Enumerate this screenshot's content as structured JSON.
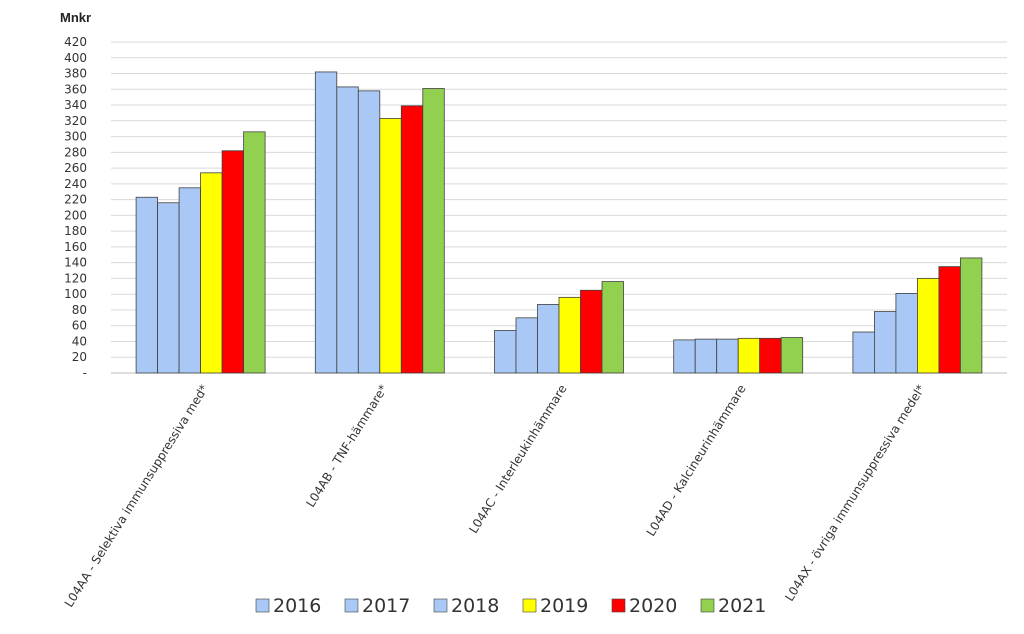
{
  "chart_data": {
    "type": "bar",
    "unit_label": "Mnkr",
    "categories": [
      "L04AA - Selektiva immunsuppressiva med*",
      "L04AB - TNF-hämmare*",
      "L04AC - Interleukinhämmare",
      "L04AD - Kalcineurinhämmare",
      "L04AX - övriga immunsuppressiva medel*"
    ],
    "series": [
      {
        "name": "2016",
        "color": "#a9c8f5",
        "values": [
          223,
          382,
          54,
          42,
          52
        ]
      },
      {
        "name": "2017",
        "color": "#a9c8f5",
        "values": [
          216,
          363,
          70,
          43,
          78
        ]
      },
      {
        "name": "2018",
        "color": "#a9c8f5",
        "values": [
          235,
          358,
          87,
          43,
          101
        ]
      },
      {
        "name": "2019",
        "color": "#ffff00",
        "values": [
          254,
          323,
          96,
          44,
          120
        ]
      },
      {
        "name": "2020",
        "color": "#ff0000",
        "values": [
          282,
          339,
          105,
          44,
          135
        ]
      },
      {
        "name": "2021",
        "color": "#92d050",
        "values": [
          306,
          361,
          116,
          45,
          146
        ]
      }
    ],
    "ylim": [
      0,
      420
    ],
    "yticks": [
      "-",
      "20",
      "40",
      "60",
      "80",
      "100",
      "120",
      "140",
      "160",
      "180",
      "200",
      "220",
      "240",
      "260",
      "280",
      "300",
      "320",
      "340",
      "360",
      "380",
      "400",
      "420"
    ],
    "grid": true,
    "legend_position": "bottom"
  }
}
